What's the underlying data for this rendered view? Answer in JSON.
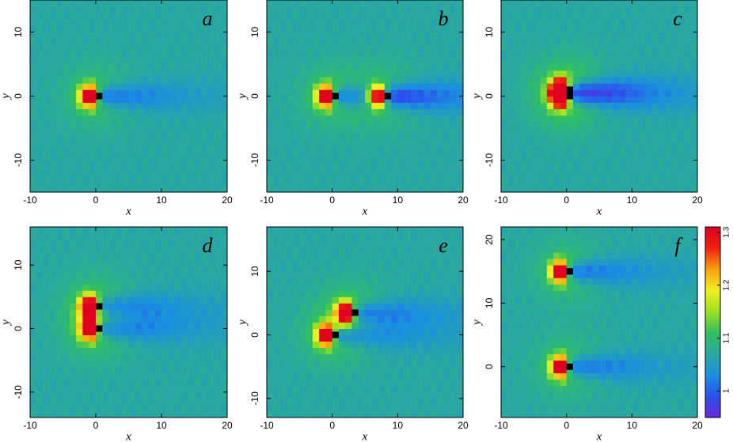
{
  "chart_data": [
    {
      "type": "heatmap",
      "label": "a",
      "xlabel": "x",
      "ylabel": "y",
      "xlim": [
        -10,
        20
      ],
      "ylim": [
        -15,
        15
      ],
      "xticks": [
        -10,
        0,
        10,
        20
      ],
      "yticks": [
        -10,
        0,
        10
      ],
      "sources": [
        {
          "x": 0,
          "y": 0
        }
      ]
    },
    {
      "type": "heatmap",
      "label": "b",
      "xlabel": "x",
      "ylabel": "y",
      "xlim": [
        -10,
        20
      ],
      "ylim": [
        -15,
        15
      ],
      "xticks": [
        -10,
        0,
        10,
        20
      ],
      "yticks": [
        -10,
        0,
        10
      ],
      "sources": [
        {
          "x": 0,
          "y": 0
        },
        {
          "x": 8,
          "y": 0
        }
      ]
    },
    {
      "type": "heatmap",
      "label": "c",
      "xlabel": "x",
      "ylabel": "y",
      "xlim": [
        -10,
        20
      ],
      "ylim": [
        -15,
        15
      ],
      "xticks": [
        -10,
        0,
        10,
        20
      ],
      "yticks": [
        -10,
        0,
        10
      ],
      "sources": [
        {
          "x": 0,
          "y": 0
        },
        {
          "x": 0,
          "y": 1
        }
      ]
    },
    {
      "type": "heatmap",
      "label": "d",
      "xlabel": "x",
      "ylabel": "y",
      "xlim": [
        -10,
        20
      ],
      "ylim": [
        -14,
        16
      ],
      "xticks": [
        -10,
        0,
        10,
        20
      ],
      "yticks": [
        -10,
        0,
        10
      ],
      "sources": [
        {
          "x": 0,
          "y": 0
        },
        {
          "x": 0,
          "y": 3.5
        }
      ]
    },
    {
      "type": "heatmap",
      "label": "e",
      "xlabel": "x",
      "ylabel": "y",
      "xlim": [
        -10,
        20
      ],
      "ylim": [
        -13,
        17
      ],
      "xticks": [
        -10,
        0,
        10,
        20
      ],
      "yticks": [
        -10,
        0,
        10
      ],
      "sources": [
        {
          "x": 0,
          "y": 0
        },
        {
          "x": 3,
          "y": 3.5
        }
      ]
    },
    {
      "type": "heatmap",
      "label": "f",
      "xlabel": "x",
      "ylabel": "y",
      "xlim": [
        -10,
        20
      ],
      "ylim": [
        -8,
        22
      ],
      "xticks": [
        -10,
        0,
        10,
        20
      ],
      "yticks": [
        0,
        10,
        20
      ],
      "sources": [
        {
          "x": 0,
          "y": 0
        },
        {
          "x": 0,
          "y": 15
        }
      ]
    }
  ],
  "colorbar": {
    "zlim": [
      0.95,
      1.31
    ],
    "ticks": [
      1,
      1.1,
      1.2,
      1.3
    ],
    "colormap": [
      "#6a28d8",
      "#2a50ee",
      "#1a8fe0",
      "#2aa8a0",
      "#30c060",
      "#9be020",
      "#f0f020",
      "#f8a010",
      "#f02010",
      "#e00020"
    ]
  }
}
